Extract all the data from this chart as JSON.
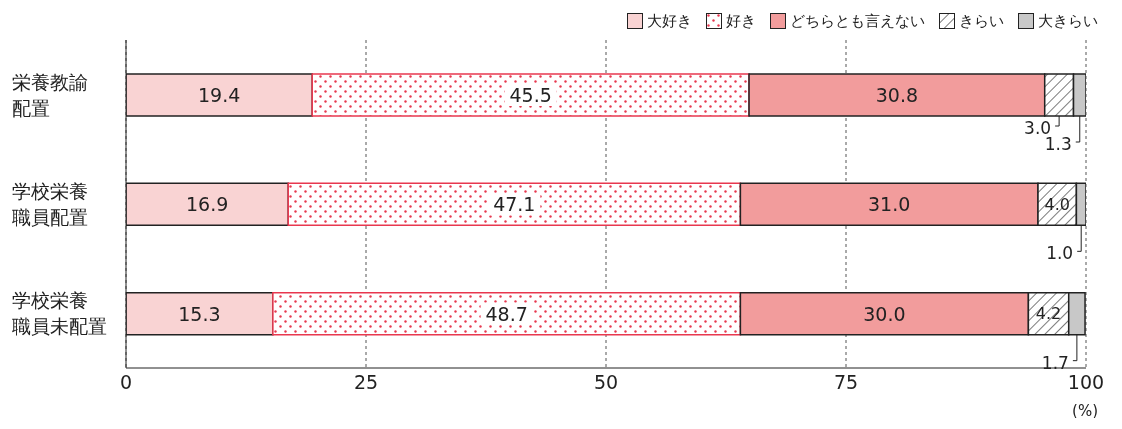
{
  "chart_data": {
    "type": "bar",
    "orientation": "horizontal",
    "stacked": true,
    "categories": [
      "栄養教諭配置",
      "学校栄養職員配置",
      "学校栄養職員未配置"
    ],
    "series": [
      {
        "name": "大好き",
        "color": "#f9d3d3",
        "values": [
          19.4,
          16.9,
          15.3
        ],
        "value_labels": [
          "19.4",
          "16.9",
          "15.3"
        ]
      },
      {
        "name": "好き",
        "color": "#e8384f",
        "values": [
          45.5,
          47.1,
          48.7
        ],
        "value_labels": [
          "45.5",
          "47.1",
          "48.7"
        ]
      },
      {
        "name": "どちらとも言えない",
        "color": "#f29c9c",
        "values": [
          30.8,
          31.0,
          30.0
        ],
        "value_labels": [
          "30.8",
          "31.0",
          "30.0"
        ]
      },
      {
        "name": "きらい",
        "color": "#222222",
        "values": [
          3.0,
          4.0,
          4.2
        ],
        "value_labels": [
          "3.0",
          "4.0",
          "4.2"
        ]
      },
      {
        "name": "大きらい",
        "color": "#c8c8c8",
        "values": [
          1.3,
          1.0,
          1.7
        ],
        "value_labels": [
          "1.3",
          "1.0",
          "1.7"
        ]
      }
    ],
    "xlim": [
      0,
      100
    ],
    "xticks": [
      0,
      25,
      50,
      75,
      100
    ],
    "xlabel": "(%)",
    "grid": "x",
    "legend": "top right"
  }
}
